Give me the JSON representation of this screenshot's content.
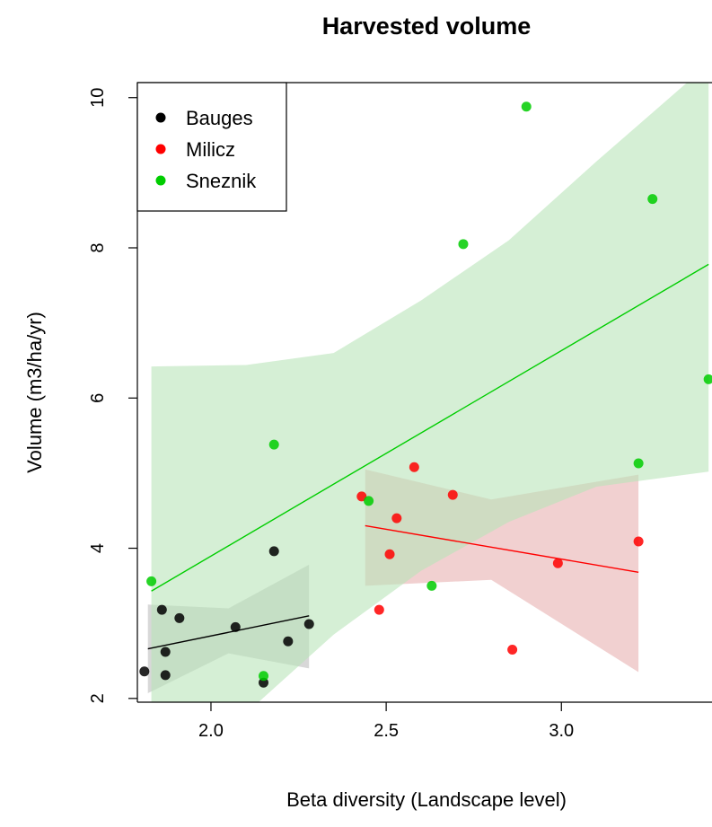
{
  "chart_data": {
    "type": "scatter",
    "title": "Harvested volume",
    "xlabel": "Beta diversity (Landscape level)",
    "ylabel": "Volume (m3/ha/yr)",
    "xlim": [
      1.79,
      3.44
    ],
    "ylim": [
      1.95,
      10.2
    ],
    "xticks": [
      2.0,
      2.5,
      3.0
    ],
    "xtick_labels": [
      "2.0",
      "2.5",
      "3.0"
    ],
    "yticks": [
      2,
      4,
      6,
      8,
      10
    ],
    "ytick_labels": [
      "2",
      "4",
      "6",
      "8",
      "10"
    ],
    "legend_position": "top-left",
    "series": [
      {
        "name": "Bauges",
        "color": "#000000",
        "band_color": "#bebebe",
        "points": [
          [
            1.81,
            2.36
          ],
          [
            1.86,
            3.18
          ],
          [
            1.87,
            2.62
          ],
          [
            1.87,
            2.31
          ],
          [
            1.91,
            3.07
          ],
          [
            2.07,
            2.95
          ],
          [
            2.15,
            2.21
          ],
          [
            2.18,
            3.96
          ],
          [
            2.22,
            2.76
          ],
          [
            2.28,
            2.99
          ]
        ],
        "fit": {
          "x": [
            1.82,
            2.28
          ],
          "y": [
            2.66,
            3.1
          ]
        },
        "band": {
          "x": [
            1.82,
            2.05,
            2.28
          ],
          "lower": [
            2.07,
            2.6,
            2.4
          ],
          "upper": [
            3.25,
            3.2,
            3.78
          ]
        }
      },
      {
        "name": "Milicz",
        "color": "#ff0000",
        "band_color": "#e8b0b0",
        "points": [
          [
            2.43,
            4.69
          ],
          [
            2.48,
            3.18
          ],
          [
            2.51,
            3.92
          ],
          [
            2.53,
            4.4
          ],
          [
            2.58,
            5.08
          ],
          [
            2.69,
            4.71
          ],
          [
            2.86,
            2.65
          ],
          [
            2.99,
            3.8
          ],
          [
            3.22,
            4.09
          ]
        ],
        "fit": {
          "x": [
            2.44,
            3.22
          ],
          "y": [
            4.3,
            3.68
          ]
        },
        "band": {
          "x": [
            2.44,
            2.8,
            3.22
          ],
          "lower": [
            3.5,
            3.58,
            2.35
          ],
          "upper": [
            5.05,
            4.65,
            4.98
          ]
        }
      },
      {
        "name": "Sneznik",
        "color": "#00cd00",
        "band_color": "#b9e4b9",
        "points": [
          [
            1.83,
            3.56
          ],
          [
            2.15,
            2.3
          ],
          [
            2.18,
            5.38
          ],
          [
            2.45,
            4.63
          ],
          [
            2.63,
            3.5
          ],
          [
            2.72,
            8.05
          ],
          [
            2.9,
            9.88
          ],
          [
            3.22,
            5.13
          ],
          [
            3.26,
            8.65
          ],
          [
            3.42,
            6.25
          ]
        ],
        "fit": {
          "x": [
            1.83,
            3.42
          ],
          "y": [
            3.43,
            7.78
          ]
        },
        "band": {
          "x": [
            1.83,
            2.1,
            2.35,
            2.6,
            2.85,
            3.1,
            3.42
          ],
          "lower": [
            0.5,
            1.8,
            2.85,
            3.7,
            4.35,
            4.82,
            5.02
          ],
          "upper": [
            6.42,
            6.44,
            6.6,
            7.3,
            8.1,
            9.15,
            10.45
          ]
        }
      }
    ]
  }
}
